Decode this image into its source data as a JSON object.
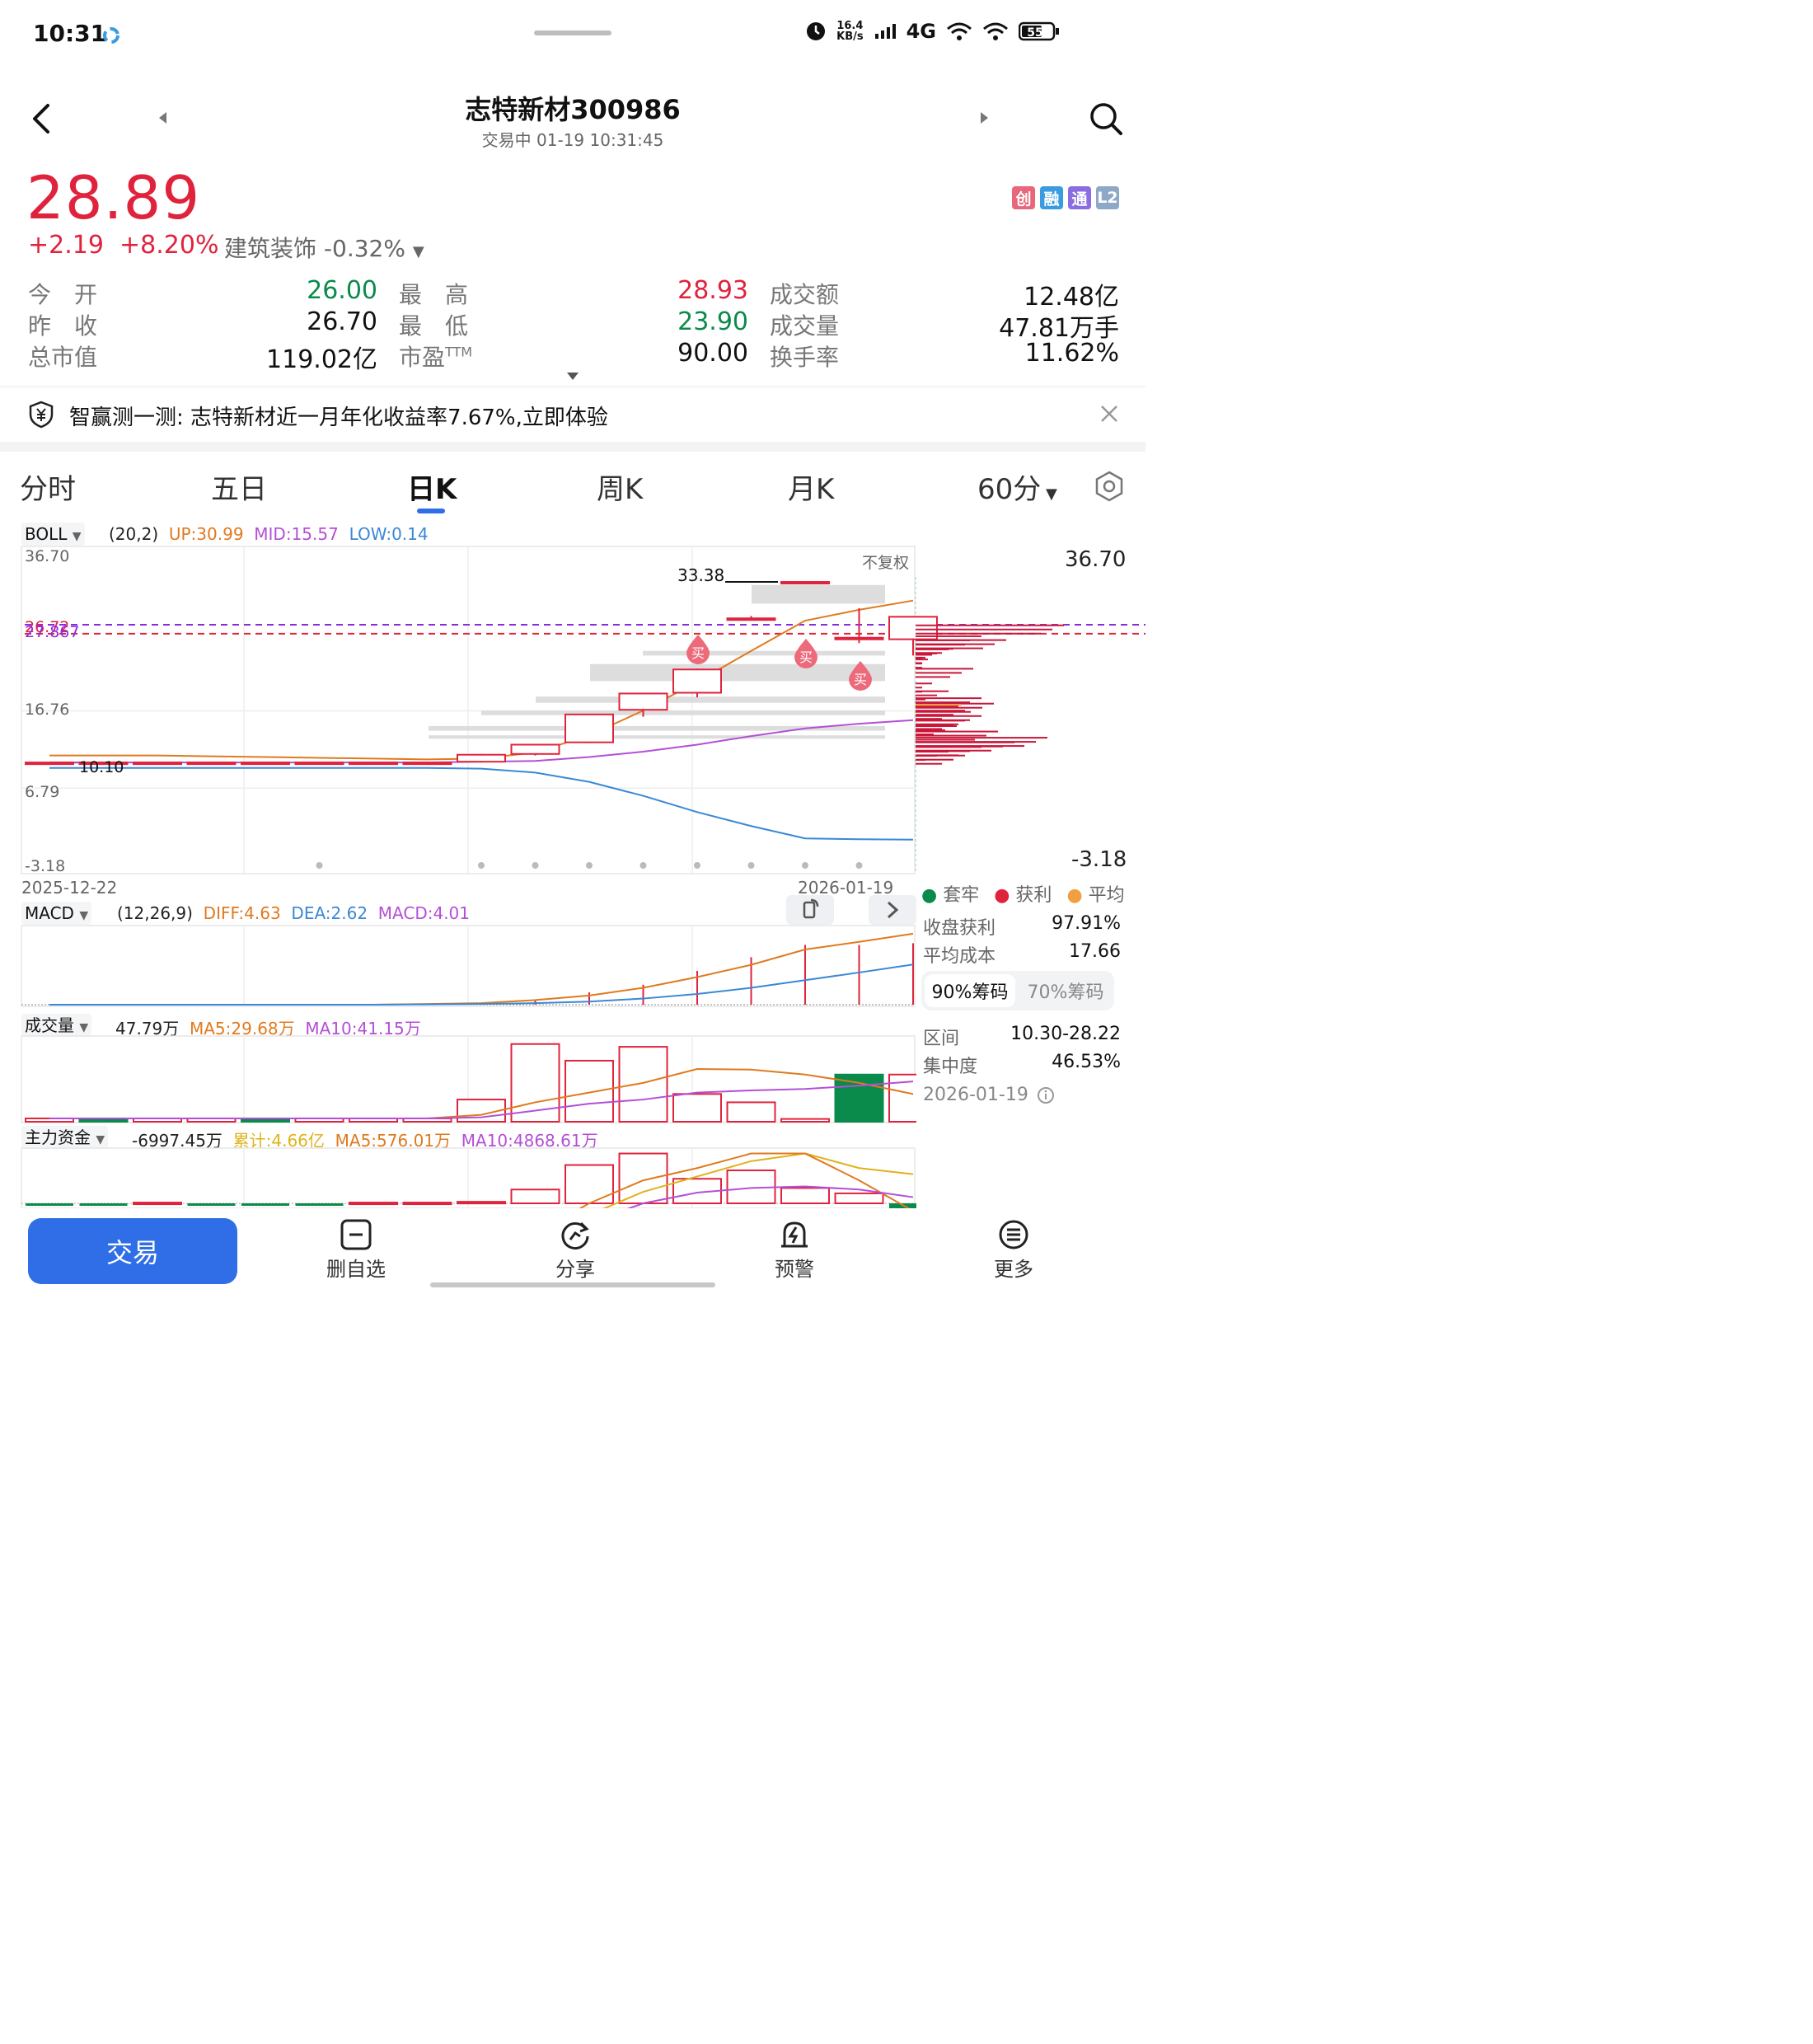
{
  "status_bar": {
    "time": "10:31",
    "speed_value": "16.4",
    "speed_unit": "KB/s",
    "network": "4G",
    "battery": "55"
  },
  "header": {
    "title": "志特新材300986",
    "subtitle": "交易中 01-19 10:31:45"
  },
  "quote": {
    "price": "28.89",
    "change": "+2.19",
    "change_pct": "+8.20%",
    "industry": "建筑装饰 -0.32%",
    "badges": [
      {
        "label": "创",
        "color": "#e8677a"
      },
      {
        "label": "融",
        "color": "#3a9be0"
      },
      {
        "label": "通",
        "color": "#8a6de0"
      },
      {
        "label": "L2",
        "color": "#8fa8c8"
      }
    ]
  },
  "stats": [
    {
      "label": "今　开",
      "value": "26.00",
      "color": "#0a8a4b"
    },
    {
      "label": "最　高",
      "value": "28.93",
      "color": "#e0233d"
    },
    {
      "label": "成交额",
      "value": "12.48亿",
      "color": "#111111"
    },
    {
      "label": "昨　收",
      "value": "26.70",
      "color": "#111111"
    },
    {
      "label": "最　低",
      "value": "23.90",
      "color": "#0a8a4b"
    },
    {
      "label": "成交量",
      "value": "47.81万手",
      "color": "#111111"
    },
    {
      "label": "总市值",
      "value": "119.02亿",
      "color": "#111111"
    },
    {
      "label": "市盈",
      "value": "90.00",
      "color": "#111111",
      "sup": "TTM"
    },
    {
      "label": "换手率",
      "value": "11.62%",
      "color": "#111111"
    }
  ],
  "banner": {
    "text": "智赢测一测: 志特新材近一月年化收益率7.67%,立即体验"
  },
  "tabs": [
    "分时",
    "五日",
    "日K",
    "周K",
    "月K",
    "60分"
  ],
  "boll": {
    "name": "BOLL",
    "param": "(20,2)",
    "up": "UP:30.99",
    "mid": "MID:15.57",
    "low": "LOW:0.14"
  },
  "kchart": {
    "ylabels": [
      "36.70",
      "16.76",
      "6.79",
      "-3.18"
    ],
    "left_marks": [
      "26.72",
      "27.867",
      "10.10"
    ],
    "max_label": "33.38",
    "restore": "不复权",
    "right_top": "36.70",
    "right_bottom": "-3.18",
    "date_start": "2025-12-22",
    "date_end": "2026-01-19",
    "buy_label": "买"
  },
  "chart_data": [
    {
      "type": "candlestick",
      "title": "BOLL",
      "x": [
        "2025-12-22",
        "c2",
        "c3",
        "c4",
        "c5",
        "c6",
        "c7",
        "c8",
        "c9",
        "c10",
        "c11",
        "c12",
        "c13",
        "c14",
        "c15",
        "c16",
        "2026-01-19"
      ],
      "ylim": [
        -3.18,
        36.7
      ],
      "open": [
        10.1,
        10.1,
        10.1,
        10.1,
        10.1,
        10.1,
        10.1,
        10.1,
        10.2,
        11.2,
        12.7,
        16.9,
        19.1,
        28.6,
        33.4,
        26.0,
        26.0
      ],
      "close": [
        10.1,
        10.1,
        10.1,
        10.1,
        10.1,
        10.1,
        10.1,
        10.1,
        11.1,
        12.4,
        16.3,
        19.0,
        22.1,
        28.7,
        33.4,
        26.2,
        28.9
      ],
      "high": [
        10.1,
        10.1,
        10.1,
        10.1,
        10.1,
        10.1,
        10.1,
        10.1,
        11.2,
        12.5,
        16.4,
        19.1,
        22.2,
        29.0,
        33.4,
        30.0,
        28.9
      ],
      "low": [
        10.1,
        10.1,
        10.1,
        10.1,
        10.1,
        10.1,
        10.1,
        10.1,
        10.1,
        11.0,
        12.6,
        16.0,
        18.5,
        28.4,
        33.4,
        25.5,
        23.9
      ],
      "series": [
        {
          "name": "UP",
          "color": "#e07a1f",
          "values": [
            11.0,
            11.0,
            11.0,
            10.9,
            10.8,
            10.7,
            10.6,
            10.5,
            10.6,
            11.4,
            13.6,
            16.8,
            20.5,
            24.5,
            28.4,
            29.8,
            30.99
          ]
        },
        {
          "name": "MID",
          "color": "#b44fd6",
          "values": [
            10.1,
            10.1,
            10.1,
            10.1,
            10.1,
            10.1,
            10.1,
            10.1,
            10.2,
            10.3,
            10.8,
            11.5,
            12.4,
            13.5,
            14.5,
            15.1,
            15.57
          ]
        },
        {
          "name": "LOW",
          "color": "#3a88d6",
          "values": [
            9.4,
            9.4,
            9.4,
            9.4,
            9.4,
            9.4,
            9.4,
            9.4,
            9.3,
            8.8,
            7.6,
            5.8,
            3.7,
            1.9,
            0.3,
            0.2,
            0.14
          ]
        }
      ]
    },
    {
      "type": "line",
      "title": "MACD",
      "ylim": [
        0,
        5
      ],
      "x": [
        "c1",
        "c2",
        "c3",
        "c4",
        "c5",
        "c6",
        "c7",
        "c8",
        "c9",
        "c10",
        "c11",
        "c12",
        "c13",
        "c14",
        "c15",
        "c16",
        "c17"
      ],
      "series": [
        {
          "name": "DIFF",
          "color": "#e07a1f",
          "values": [
            0,
            0,
            0,
            0,
            0,
            0,
            0,
            0.05,
            0.1,
            0.3,
            0.6,
            1.1,
            1.8,
            2.6,
            3.6,
            4.1,
            4.63
          ]
        },
        {
          "name": "DEA",
          "color": "#3a88d6",
          "values": [
            0,
            0,
            0,
            0,
            0,
            0,
            0,
            0.02,
            0.05,
            0.1,
            0.2,
            0.4,
            0.7,
            1.1,
            1.6,
            2.1,
            2.62
          ]
        }
      ],
      "bars": [
        0,
        0,
        0,
        0,
        0,
        0,
        0.02,
        0.05,
        0.1,
        0.3,
        0.8,
        1.3,
        2.2,
        3.1,
        3.9,
        3.9,
        4.01
      ]
    },
    {
      "type": "bar",
      "title": "成交量",
      "values": [
        1.2,
        1.2,
        1.2,
        1.2,
        1.2,
        1.2,
        1.2,
        1.2,
        8.0,
        28.0,
        22.0,
        27.0,
        10.0,
        7.0,
        1.0,
        17.0,
        17.0
      ],
      "up": [
        1,
        0,
        1,
        1,
        0,
        1,
        1,
        1,
        1,
        1,
        1,
        1,
        1,
        1,
        1,
        0,
        1
      ],
      "ylim": [
        0,
        30
      ],
      "series": [
        {
          "name": "MA5",
          "color": "#e07a1f",
          "values": [
            1.2,
            1.2,
            1.2,
            1.2,
            1.2,
            1.2,
            1.2,
            1.2,
            2.5,
            7.0,
            10.5,
            14.0,
            19.0,
            18.8,
            17.0,
            14.0,
            10.0
          ]
        },
        {
          "name": "MA10",
          "color": "#b44fd6",
          "values": [
            1.2,
            1.2,
            1.2,
            1.2,
            1.2,
            1.2,
            1.2,
            1.2,
            1.6,
            4.0,
            6.5,
            8.0,
            10.5,
            11.3,
            11.8,
            13.0,
            14.5
          ]
        }
      ]
    },
    {
      "type": "bar",
      "title": "主力资金",
      "values": [
        -0.1,
        -0.1,
        0.1,
        -0.1,
        -0.1,
        -0.1,
        0.1,
        0.1,
        0.2,
        1.8,
        5.0,
        6.5,
        3.2,
        4.3,
        2.0,
        1.3,
        -1.6
      ],
      "up": [
        0,
        0,
        1,
        0,
        0,
        0,
        1,
        1,
        1,
        1,
        1,
        1,
        1,
        1,
        1,
        1,
        0
      ],
      "series": [
        {
          "name": "累计",
          "color": "#e0b21a",
          "values": [
            -5,
            -5,
            -5,
            -5,
            -5,
            -5,
            -5,
            -5,
            -5,
            -3.5,
            -1.5,
            1.5,
            3.5,
            5.5,
            6.5,
            4.6,
            3.8
          ]
        },
        {
          "name": "MA5",
          "color": "#e07a1f",
          "values": [
            -5,
            -5,
            -5,
            -5,
            -5,
            -5,
            -5,
            -5,
            -5,
            -4,
            0,
            3,
            4.6,
            6.5,
            6.5,
            3.0,
            -1.0
          ]
        },
        {
          "name": "MA10",
          "color": "#b44fd6",
          "values": [
            -5,
            -5,
            -5,
            -5,
            -5,
            -5,
            -5,
            -5,
            -5,
            -4.5,
            -2.5,
            0,
            1.4,
            2.0,
            2.2,
            1.8,
            0.8
          ]
        }
      ]
    }
  ],
  "macd": {
    "name": "MACD",
    "param": "(12,26,9)",
    "diff": "DIFF:4.63",
    "dea": "DEA:2.62",
    "macd": "MACD:4.01"
  },
  "volume": {
    "name": "成交量",
    "value": "47.79万",
    "ma5": "MA5:29.68万",
    "ma10": "MA10:41.15万"
  },
  "mainfund": {
    "name": "主力资金",
    "value": "-6997.45万",
    "total": "累计:4.66亿",
    "ma5": "MA5:576.01万",
    "ma10": "MA10:4868.61万"
  },
  "chips": {
    "legend": [
      "套牢",
      "获利",
      "平均"
    ],
    "legend_colors": [
      "#0a8a4b",
      "#e0233d",
      "#f0a040"
    ],
    "profit_label": "收盘获利",
    "profit_value": "97.91%",
    "cost_label": "平均成本",
    "cost_value": "17.66",
    "tab1": "90%筹码",
    "tab2": "70%筹码",
    "range_label": "区间",
    "range_value": "10.30-28.22",
    "conc_label": "集中度",
    "conc_value": "46.53%",
    "date": "2026-01-19"
  },
  "bottom": {
    "trade": "交易",
    "items": [
      "删自选",
      "分享",
      "预警",
      "更多"
    ]
  }
}
